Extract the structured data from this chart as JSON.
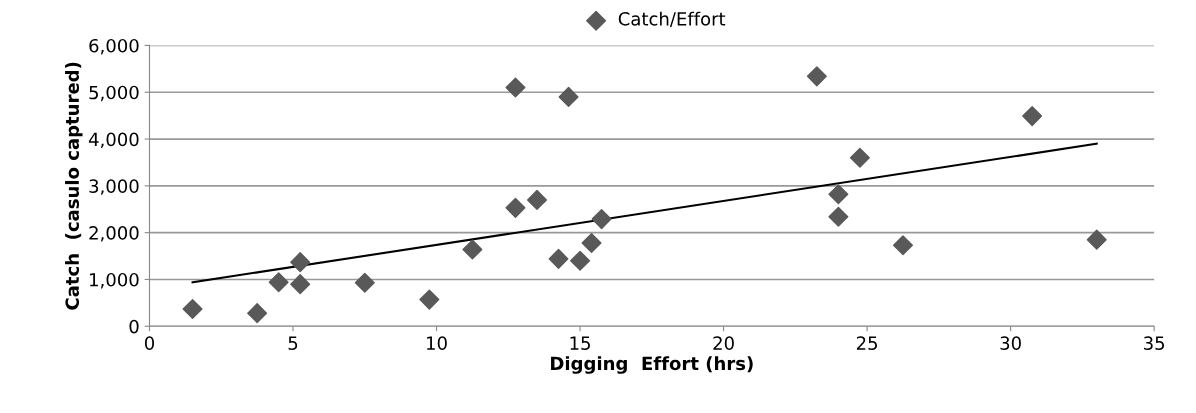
{
  "chart_data": {
    "type": "scatter",
    "xlabel": "Digging  Effort (hrs)",
    "ylabel": "Catch  (casulo captured)",
    "xlim": [
      0,
      35
    ],
    "xticks": [
      0,
      5,
      10,
      15,
      20,
      25,
      30,
      35
    ],
    "ylim": [
      0,
      6000
    ],
    "yticks": [
      0,
      {
        "value": 1000,
        "label": "1,000"
      },
      {
        "value": 2000,
        "label": "2,000"
      },
      {
        "value": 3000,
        "label": "3,000"
      },
      {
        "value": 4000,
        "label": "4,000"
      },
      {
        "value": 5000,
        "label": "5,000"
      },
      {
        "value": 6000,
        "label": "6,000"
      }
    ],
    "grid": "y",
    "legend": "top",
    "series": [
      {
        "name": "Catch/Effort",
        "marker": "diamond",
        "color": "#595959",
        "x": [
          1.5,
          3.75,
          4.5,
          5.25,
          5.25,
          7.5,
          9.75,
          11.25,
          12.75,
          12.75,
          13.5,
          14.25,
          14.6,
          15,
          15.4,
          15.75,
          23.25,
          24,
          24,
          24.75,
          26.25,
          30.75,
          33
        ],
        "values": [
          370,
          280,
          940,
          1370,
          900,
          930,
          570,
          1640,
          5100,
          2530,
          2700,
          1440,
          4900,
          1400,
          1780,
          2290,
          5340,
          2820,
          2340,
          3600,
          1730,
          4490,
          1850
        ]
      },
      {
        "type": "line",
        "marker": "none",
        "color": "#000000",
        "x": [
          1.5,
          33
        ],
        "values": [
          940,
          3900
        ]
      }
    ]
  }
}
